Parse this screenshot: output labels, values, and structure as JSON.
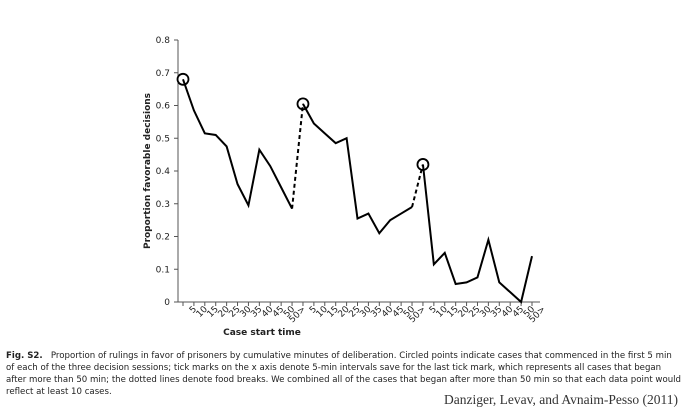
{
  "chart_data": {
    "type": "line",
    "xlabel": "Case start time",
    "ylabel": "Proportion favorable decisions",
    "categories": [
      "5",
      "10",
      "15",
      "20",
      "25",
      "30",
      "35",
      "40",
      "45",
      "50",
      "50>",
      "5",
      "10",
      "15",
      "20",
      "25",
      "30",
      "35",
      "40",
      "45",
      "50",
      "50>",
      "5",
      "10",
      "15",
      "20",
      "25",
      "30",
      "35",
      "40",
      "45",
      "50",
      "50>"
    ],
    "values": [
      0.68,
      0.585,
      0.515,
      0.51,
      0.475,
      0.36,
      0.295,
      0.465,
      0.415,
      0.35,
      0.285,
      0.605,
      0.545,
      0.515,
      0.485,
      0.5,
      0.255,
      0.27,
      0.21,
      0.25,
      0.27,
      0.29,
      0.42,
      0.115,
      0.15,
      0.055,
      0.06,
      0.075,
      0.19,
      0.06,
      0.03,
      0.0,
      0.14
    ],
    "color": "#000000",
    "session_starts": [
      0,
      11,
      22
    ],
    "ylim": [
      0,
      0.8
    ],
    "yticks": [
      0,
      0.1,
      0.2,
      0.3,
      0.4,
      0.5,
      0.6,
      0.7,
      0.8
    ]
  },
  "caption": {
    "label": "Fig. S2.",
    "text": "Proportion of rulings in favor of prisoners by cumulative minutes of deliberation. Circled points indicate cases that commenced in the first 5 min of each of the three decision sessions; tick marks on the x axis denote 5-min intervals save for the last tick mark, which represents all cases that began after more than 50 min; the dotted lines denote food breaks. We combined all of the cases that began after more than 50 min so that each data point would reflect at least 10 cases."
  },
  "credit": "Danziger, Levav, and Avnaim-Pesso (2011)"
}
